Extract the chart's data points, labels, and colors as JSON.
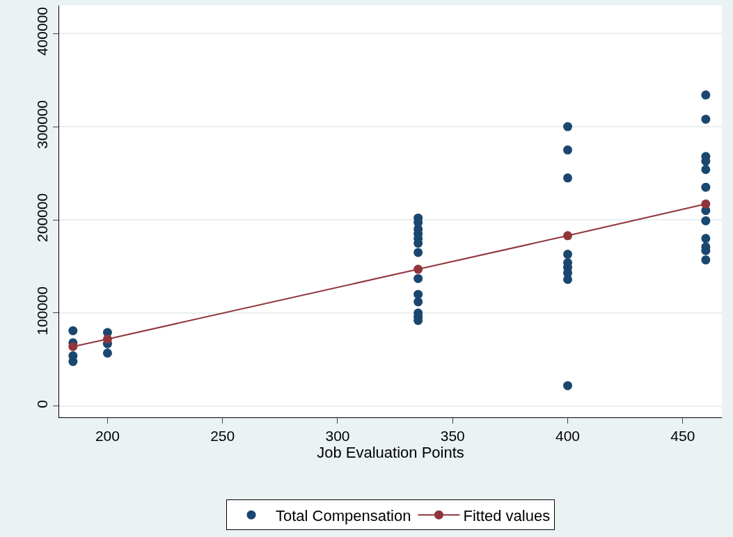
{
  "chart_data": {
    "type": "scatter",
    "xlabel": "Job Evaluation Points",
    "xlim": [
      179,
      467
    ],
    "xticks": [
      200,
      250,
      300,
      350,
      400,
      450
    ],
    "ylim": [
      -12000,
      430000
    ],
    "yticks": [
      0,
      100000,
      200000,
      300000,
      400000
    ],
    "grid": "y",
    "legend": "bottom",
    "marker": "circle",
    "series": [
      {
        "name": "Total Compensation",
        "color": "#1a476f",
        "x": [
          185,
          185,
          185,
          185,
          200,
          200,
          200,
          335,
          335,
          335,
          335,
          335,
          335,
          335,
          335,
          335,
          335,
          335,
          335,
          335,
          400,
          400,
          400,
          400,
          400,
          400,
          400,
          400,
          400,
          460,
          460,
          460,
          460,
          460,
          460,
          460,
          460,
          460,
          460,
          460,
          460
        ],
        "values": [
          81000,
          68000,
          54000,
          48000,
          79000,
          67000,
          57000,
          202000,
          197000,
          190000,
          185000,
          180000,
          175000,
          165000,
          137000,
          120000,
          112000,
          100000,
          96000,
          92000,
          300000,
          275000,
          245000,
          163000,
          154000,
          149000,
          143000,
          136000,
          22000,
          334000,
          308000,
          268000,
          263000,
          254000,
          235000,
          210000,
          199000,
          180000,
          171000,
          167000,
          157000
        ]
      },
      {
        "name": "Fitted values",
        "color": "#90353b",
        "type": "line",
        "x": [
          185,
          200,
          335,
          400,
          460
        ],
        "values": [
          64000,
          72000,
          147000,
          183000,
          217000
        ]
      }
    ]
  }
}
